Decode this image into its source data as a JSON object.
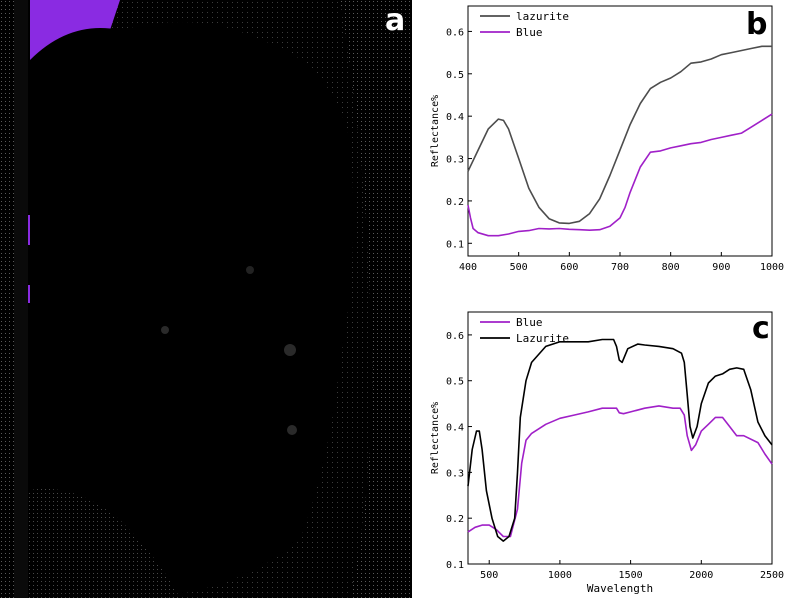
{
  "panel_labels": {
    "a": "a",
    "b": "b",
    "c": "c"
  },
  "panel_a": {
    "description_colors": {
      "background": "#000000",
      "highlight": "#8a2be2"
    }
  },
  "chart_data": [
    {
      "id": "b",
      "type": "line",
      "title": "",
      "xlabel": "",
      "ylabel": "Reflectance%",
      "xlim": [
        400,
        1000
      ],
      "ylim": [
        0.07,
        0.66
      ],
      "xticks": [
        400,
        500,
        600,
        700,
        800,
        900,
        1000
      ],
      "yticks": [
        0.1,
        0.2,
        0.3,
        0.4,
        0.5,
        0.6
      ],
      "legend_position": "top-left",
      "series": [
        {
          "name": "lazurite",
          "color": "#4d4d4d",
          "x": [
            400,
            420,
            440,
            460,
            470,
            480,
            500,
            520,
            540,
            560,
            580,
            600,
            620,
            640,
            660,
            680,
            700,
            720,
            740,
            760,
            780,
            800,
            820,
            840,
            860,
            880,
            900,
            920,
            940,
            960,
            980,
            1000
          ],
          "y": [
            0.27,
            0.32,
            0.37,
            0.393,
            0.39,
            0.37,
            0.3,
            0.23,
            0.185,
            0.158,
            0.148,
            0.147,
            0.152,
            0.17,
            0.205,
            0.26,
            0.32,
            0.38,
            0.43,
            0.465,
            0.48,
            0.49,
            0.505,
            0.525,
            0.528,
            0.535,
            0.545,
            0.55,
            0.555,
            0.56,
            0.565,
            0.565
          ]
        },
        {
          "name": "Blue",
          "color": "#a020c8",
          "x": [
            400,
            405,
            410,
            420,
            440,
            460,
            480,
            500,
            520,
            540,
            560,
            580,
            600,
            620,
            640,
            660,
            680,
            700,
            710,
            720,
            740,
            760,
            780,
            800,
            820,
            840,
            860,
            880,
            900,
            920,
            940,
            960,
            980,
            1000
          ],
          "y": [
            0.19,
            0.16,
            0.135,
            0.125,
            0.118,
            0.118,
            0.122,
            0.128,
            0.13,
            0.135,
            0.134,
            0.135,
            0.133,
            0.132,
            0.131,
            0.132,
            0.14,
            0.16,
            0.185,
            0.22,
            0.28,
            0.315,
            0.318,
            0.325,
            0.33,
            0.335,
            0.338,
            0.345,
            0.35,
            0.355,
            0.36,
            0.375,
            0.39,
            0.405
          ]
        }
      ]
    },
    {
      "id": "c",
      "type": "line",
      "title": "",
      "xlabel": "Wavelength",
      "ylabel": "Reflectance%",
      "xlim": [
        350,
        2500
      ],
      "ylim": [
        0.1,
        0.65
      ],
      "xticks": [
        500,
        1000,
        1500,
        2000,
        2500
      ],
      "yticks": [
        0.1,
        0.2,
        0.3,
        0.4,
        0.5,
        0.6
      ],
      "legend_position": "top-left",
      "series": [
        {
          "name": "Blue",
          "color": "#a020c8",
          "x": [
            350,
            400,
            450,
            500,
            550,
            600,
            650,
            700,
            730,
            760,
            800,
            900,
            1000,
            1100,
            1200,
            1300,
            1400,
            1420,
            1450,
            1500,
            1600,
            1700,
            1800,
            1850,
            1880,
            1900,
            1930,
            1960,
            2000,
            2050,
            2100,
            2150,
            2200,
            2250,
            2300,
            2400,
            2450,
            2500
          ],
          "y": [
            0.17,
            0.18,
            0.185,
            0.185,
            0.175,
            0.16,
            0.16,
            0.22,
            0.32,
            0.37,
            0.385,
            0.405,
            0.418,
            0.425,
            0.432,
            0.44,
            0.44,
            0.43,
            0.428,
            0.432,
            0.44,
            0.445,
            0.44,
            0.44,
            0.425,
            0.38,
            0.348,
            0.36,
            0.39,
            0.405,
            0.42,
            0.42,
            0.4,
            0.38,
            0.38,
            0.365,
            0.34,
            0.318
          ]
        },
        {
          "name": "Lazurite",
          "color": "#000000",
          "x": [
            350,
            380,
            410,
            430,
            450,
            480,
            520,
            560,
            600,
            640,
            680,
            700,
            720,
            760,
            800,
            900,
            1000,
            1100,
            1200,
            1300,
            1380,
            1400,
            1420,
            1440,
            1480,
            1550,
            1600,
            1700,
            1800,
            1860,
            1880,
            1900,
            1920,
            1940,
            1970,
            2000,
            2050,
            2100,
            2150,
            2200,
            2250,
            2300,
            2350,
            2400,
            2450,
            2500
          ],
          "y": [
            0.27,
            0.35,
            0.39,
            0.39,
            0.35,
            0.26,
            0.2,
            0.16,
            0.15,
            0.16,
            0.2,
            0.3,
            0.42,
            0.5,
            0.54,
            0.575,
            0.585,
            0.585,
            0.585,
            0.59,
            0.59,
            0.575,
            0.545,
            0.54,
            0.57,
            0.58,
            0.578,
            0.575,
            0.57,
            0.56,
            0.54,
            0.47,
            0.4,
            0.375,
            0.4,
            0.45,
            0.495,
            0.51,
            0.515,
            0.525,
            0.528,
            0.525,
            0.48,
            0.41,
            0.38,
            0.36
          ]
        }
      ]
    }
  ]
}
